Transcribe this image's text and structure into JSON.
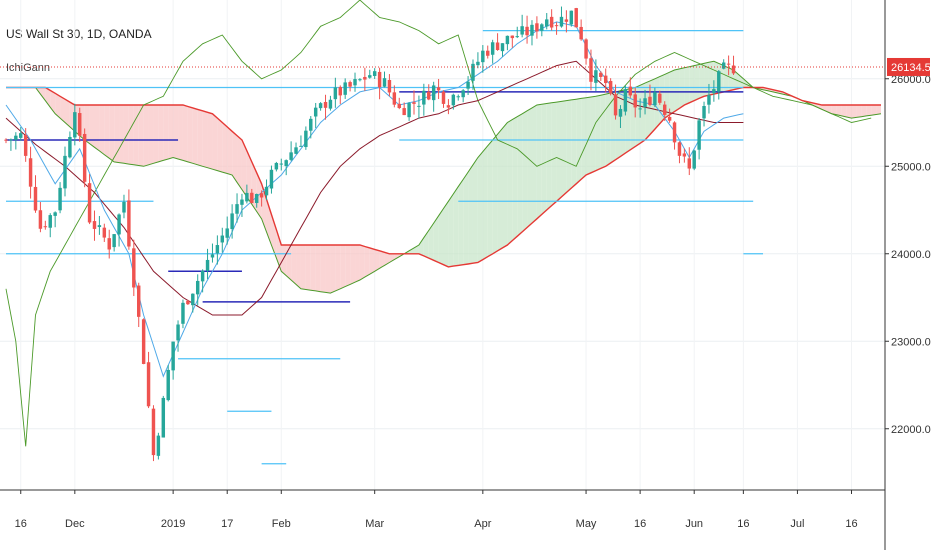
{
  "header": {
    "title": "US Wall St 30, 1D, OANDA",
    "indicator": "IchiGann"
  },
  "colors": {
    "up": "#26a69a",
    "down": "#ef5350",
    "kijun": "#8b1a2b",
    "tenkan": "#4fa9e8",
    "chikou": "#4c9a2a",
    "spanA": "#4c9a2a",
    "spanB": "#e53935",
    "cloud_bull": "#c8e6c9",
    "cloud_bear": "#f8c7c7",
    "gann_light": "#4fc3f7",
    "gann_dark": "#2a2ab8",
    "price_line": "#e53935"
  },
  "chart_data": {
    "type": "candlestick",
    "symbol": "US Wall St 30",
    "interval": "1D",
    "source": "OANDA",
    "y_range": [
      21300,
      26900
    ],
    "y_ticks": [
      22000,
      23000,
      24000,
      25000,
      26000
    ],
    "y_tick_labels": [
      "22000.0",
      "23000.0",
      "24000.0",
      "25000.0",
      "26000.0"
    ],
    "last_price": 26134.5,
    "last_price_label": "26134.5",
    "x_ticks": [
      {
        "label": "16",
        "i": 3
      },
      {
        "label": "Dec",
        "i": 14
      },
      {
        "label": "2019",
        "i": 34
      },
      {
        "label": "17",
        "i": 45
      },
      {
        "label": "Feb",
        "i": 56
      },
      {
        "label": "Mar",
        "i": 75
      },
      {
        "label": "Apr",
        "i": 97
      },
      {
        "label": "May",
        "i": 118
      },
      {
        "label": "16",
        "i": 129
      },
      {
        "label": "Jun",
        "i": 140
      },
      {
        "label": "16",
        "i": 150
      },
      {
        "label": "Jul",
        "i": 161
      },
      {
        "label": "16",
        "i": 172
      }
    ],
    "bar_count": 178,
    "price_keypoints": [
      [
        0,
        25300
      ],
      [
        3,
        25350
      ],
      [
        7,
        24300
      ],
      [
        10,
        24500
      ],
      [
        14,
        25700
      ],
      [
        17,
        24400
      ],
      [
        21,
        24100
      ],
      [
        24,
        24600
      ],
      [
        28,
        22800
      ],
      [
        30,
        21700
      ],
      [
        32,
        22300
      ],
      [
        34,
        23000
      ],
      [
        36,
        23400
      ],
      [
        39,
        23700
      ],
      [
        42,
        24000
      ],
      [
        45,
        24300
      ],
      [
        48,
        24700
      ],
      [
        51,
        24600
      ],
      [
        54,
        24900
      ],
      [
        57,
        25100
      ],
      [
        60,
        25300
      ],
      [
        63,
        25600
      ],
      [
        66,
        25800
      ],
      [
        70,
        25900
      ],
      [
        74,
        26050
      ],
      [
        77,
        25950
      ],
      [
        80,
        25650
      ],
      [
        84,
        25750
      ],
      [
        87,
        25900
      ],
      [
        90,
        25750
      ],
      [
        94,
        26000
      ],
      [
        97,
        26300
      ],
      [
        100,
        26400
      ],
      [
        104,
        26500
      ],
      [
        107,
        26550
      ],
      [
        110,
        26700
      ],
      [
        112,
        26650
      ],
      [
        115,
        26750
      ],
      [
        117,
        26500
      ],
      [
        119,
        26050
      ],
      [
        122,
        25950
      ],
      [
        124,
        25550
      ],
      [
        126,
        25800
      ],
      [
        129,
        25650
      ],
      [
        132,
        25850
      ],
      [
        135,
        25550
      ],
      [
        137,
        25150
      ],
      [
        139,
        24950
      ],
      [
        141,
        25500
      ],
      [
        143,
        25800
      ],
      [
        146,
        26100
      ],
      [
        148,
        26134
      ]
    ],
    "tenkan_keypoints": [
      [
        0,
        25700
      ],
      [
        5,
        25300
      ],
      [
        10,
        24800
      ],
      [
        15,
        25200
      ],
      [
        20,
        24500
      ],
      [
        25,
        24000
      ],
      [
        28,
        23300
      ],
      [
        32,
        22600
      ],
      [
        36,
        23100
      ],
      [
        40,
        23600
      ],
      [
        44,
        24000
      ],
      [
        48,
        24500
      ],
      [
        52,
        24700
      ],
      [
        56,
        24900
      ],
      [
        60,
        25200
      ],
      [
        64,
        25500
      ],
      [
        68,
        25700
      ],
      [
        72,
        25850
      ],
      [
        76,
        25900
      ],
      [
        80,
        25700
      ],
      [
        84,
        25750
      ],
      [
        88,
        25850
      ],
      [
        92,
        25900
      ],
      [
        96,
        26050
      ],
      [
        100,
        26200
      ],
      [
        104,
        26400
      ],
      [
        108,
        26550
      ],
      [
        112,
        26650
      ],
      [
        116,
        26600
      ],
      [
        120,
        26150
      ],
      [
        124,
        25850
      ],
      [
        128,
        25750
      ],
      [
        132,
        25700
      ],
      [
        136,
        25400
      ],
      [
        139,
        25100
      ],
      [
        142,
        25400
      ],
      [
        146,
        25550
      ],
      [
        150,
        25600
      ]
    ],
    "kijun_keypoints": [
      [
        0,
        25550
      ],
      [
        6,
        25250
      ],
      [
        12,
        25000
      ],
      [
        18,
        24700
      ],
      [
        24,
        24300
      ],
      [
        30,
        23800
      ],
      [
        36,
        23500
      ],
      [
        42,
        23300
      ],
      [
        48,
        23300
      ],
      [
        52,
        23500
      ],
      [
        56,
        23900
      ],
      [
        60,
        24300
      ],
      [
        64,
        24700
      ],
      [
        68,
        25000
      ],
      [
        72,
        25200
      ],
      [
        76,
        25350
      ],
      [
        80,
        25450
      ],
      [
        84,
        25550
      ],
      [
        88,
        25600
      ],
      [
        92,
        25700
      ],
      [
        96,
        25750
      ],
      [
        100,
        25850
      ],
      [
        104,
        25950
      ],
      [
        108,
        26050
      ],
      [
        112,
        26150
      ],
      [
        116,
        26200
      ],
      [
        120,
        26000
      ],
      [
        124,
        25800
      ],
      [
        128,
        25700
      ],
      [
        132,
        25650
      ],
      [
        136,
        25600
      ],
      [
        140,
        25550
      ],
      [
        144,
        25500
      ],
      [
        148,
        25500
      ],
      [
        150,
        25500
      ]
    ],
    "chikou_keypoints": [
      [
        0,
        23600
      ],
      [
        2,
        23000
      ],
      [
        4,
        21800
      ],
      [
        6,
        23300
      ],
      [
        9,
        23800
      ],
      [
        12,
        24100
      ],
      [
        16,
        24500
      ],
      [
        20,
        24900
      ],
      [
        24,
        25300
      ],
      [
        28,
        25700
      ],
      [
        32,
        25800
      ],
      [
        36,
        26200
      ],
      [
        40,
        26400
      ],
      [
        44,
        26500
      ],
      [
        48,
        26200
      ],
      [
        52,
        26000
      ],
      [
        56,
        26100
      ],
      [
        60,
        26300
      ],
      [
        64,
        26600
      ],
      [
        68,
        26700
      ],
      [
        72,
        26900
      ],
      [
        76,
        26700
      ],
      [
        80,
        26650
      ],
      [
        84,
        26550
      ],
      [
        88,
        26400
      ],
      [
        92,
        26500
      ],
      [
        96,
        25750
      ],
      [
        100,
        25300
      ],
      [
        104,
        25200
      ],
      [
        108,
        25000
      ],
      [
        112,
        25100
      ],
      [
        116,
        25000
      ],
      [
        120,
        25500
      ],
      [
        124,
        25800
      ],
      [
        128,
        26050
      ],
      [
        132,
        26200
      ],
      [
        136,
        26300
      ],
      [
        140,
        26200
      ],
      [
        144,
        26100
      ],
      [
        148,
        26000
      ],
      [
        152,
        25900
      ],
      [
        156,
        25800
      ],
      [
        160,
        25750
      ],
      [
        164,
        25700
      ],
      [
        168,
        25600
      ],
      [
        172,
        25500
      ],
      [
        176,
        25550
      ]
    ],
    "spanA_keypoints": [
      [
        0,
        25900
      ],
      [
        6,
        25900
      ],
      [
        10,
        25600
      ],
      [
        16,
        25300
      ],
      [
        22,
        25050
      ],
      [
        28,
        25000
      ],
      [
        34,
        25100
      ],
      [
        40,
        25000
      ],
      [
        46,
        24900
      ],
      [
        52,
        24400
      ],
      [
        56,
        23800
      ],
      [
        60,
        23600
      ],
      [
        66,
        23550
      ],
      [
        72,
        23700
      ],
      [
        78,
        23900
      ],
      [
        84,
        24100
      ],
      [
        90,
        24600
      ],
      [
        96,
        25100
      ],
      [
        102,
        25500
      ],
      [
        108,
        25700
      ],
      [
        114,
        25750
      ],
      [
        120,
        25800
      ],
      [
        124,
        25850
      ],
      [
        128,
        25900
      ],
      [
        132,
        26000
      ],
      [
        136,
        26100
      ],
      [
        140,
        26150
      ],
      [
        144,
        26200
      ],
      [
        148,
        26100
      ],
      [
        152,
        25900
      ],
      [
        156,
        25850
      ],
      [
        160,
        25800
      ],
      [
        164,
        25700
      ],
      [
        168,
        25600
      ],
      [
        172,
        25550
      ],
      [
        178,
        25600
      ]
    ],
    "spanB_keypoints": [
      [
        0,
        25900
      ],
      [
        8,
        25900
      ],
      [
        14,
        25700
      ],
      [
        22,
        25700
      ],
      [
        30,
        25700
      ],
      [
        36,
        25700
      ],
      [
        42,
        25600
      ],
      [
        48,
        25300
      ],
      [
        52,
        24800
      ],
      [
        56,
        24100
      ],
      [
        60,
        24100
      ],
      [
        66,
        24100
      ],
      [
        72,
        24100
      ],
      [
        78,
        24000
      ],
      [
        84,
        24000
      ],
      [
        90,
        23850
      ],
      [
        96,
        23900
      ],
      [
        102,
        24100
      ],
      [
        108,
        24400
      ],
      [
        114,
        24700
      ],
      [
        118,
        24900
      ],
      [
        122,
        25000
      ],
      [
        126,
        25150
      ],
      [
        130,
        25300
      ],
      [
        134,
        25550
      ],
      [
        138,
        25700
      ],
      [
        142,
        25800
      ],
      [
        146,
        25850
      ],
      [
        150,
        25900
      ],
      [
        154,
        25900
      ],
      [
        158,
        25850
      ],
      [
        162,
        25750
      ],
      [
        166,
        25700
      ],
      [
        170,
        25700
      ],
      [
        174,
        25700
      ],
      [
        178,
        25700
      ]
    ],
    "gann_levels": [
      {
        "level": 26550,
        "from": 97,
        "to": 150,
        "color": "light"
      },
      {
        "level": 25900,
        "from": 0,
        "to": 150,
        "color": "light"
      },
      {
        "level": 25300,
        "from": 80,
        "to": 150,
        "color": "light"
      },
      {
        "level": 25300,
        "from": 0,
        "to": 35,
        "color": "dark"
      },
      {
        "level": 25850,
        "from": 80,
        "to": 150,
        "color": "dark"
      },
      {
        "level": 24600,
        "from": 0,
        "to": 30,
        "color": "light"
      },
      {
        "level": 24600,
        "from": 92,
        "to": 152,
        "color": "light"
      },
      {
        "level": 24000,
        "from": 0,
        "to": 58,
        "color": "light"
      },
      {
        "level": 24000,
        "from": 150,
        "to": 154,
        "color": "light"
      },
      {
        "level": 23800,
        "from": 33,
        "to": 48,
        "color": "dark"
      },
      {
        "level": 23450,
        "from": 40,
        "to": 70,
        "color": "dark"
      },
      {
        "level": 22800,
        "from": 35,
        "to": 68,
        "color": "light"
      },
      {
        "level": 22200,
        "from": 45,
        "to": 54,
        "color": "light"
      },
      {
        "level": 21600,
        "from": 52,
        "to": 57,
        "color": "light"
      }
    ]
  }
}
